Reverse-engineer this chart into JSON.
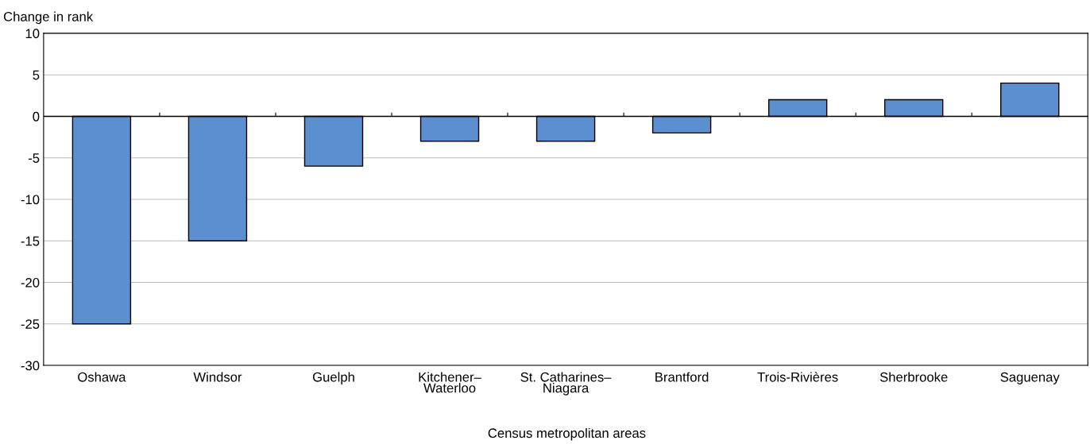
{
  "chart_data": {
    "type": "bar",
    "ylabel": "Change in rank",
    "xlabel": "Census metropolitan areas",
    "categories": [
      "Oshawa",
      "Windsor",
      "Guelph",
      "Kitchener–\nWaterloo",
      "St. Catharines–\nNiagara",
      "Brantford",
      "Trois-Rivières",
      "Sherbrooke",
      "Saguenay"
    ],
    "values": [
      -25,
      -15,
      -6,
      -3,
      -3,
      -2,
      2,
      2,
      4
    ],
    "color": "#5b8fcf",
    "ylim": [
      -30,
      10
    ],
    "yticks": [
      -30,
      -25,
      -20,
      -15,
      -10,
      -5,
      0,
      5,
      10
    ],
    "grid": "y"
  }
}
